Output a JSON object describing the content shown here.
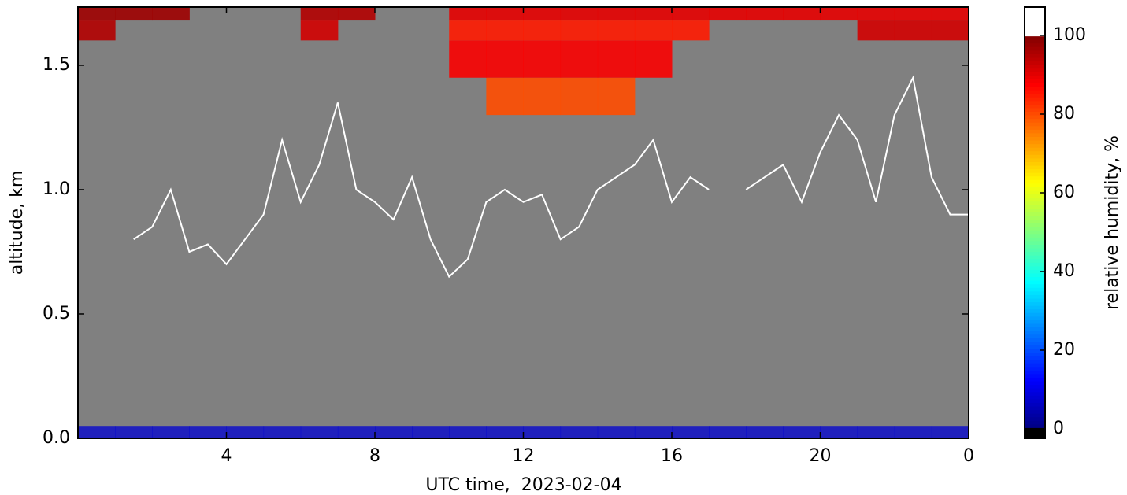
{
  "chart_data": {
    "type": "heatmap",
    "x_label": "UTC time,  2023-02-04",
    "y_label": "altitude, km",
    "xlim": [
      0,
      24
    ],
    "xticks": [
      4,
      8,
      12,
      16,
      20,
      {
        "value": 24,
        "label": "0"
      }
    ],
    "ylim": [
      0,
      1.734
    ],
    "yticks": [
      {
        "value": 0,
        "label": "0.0"
      },
      0.5,
      {
        "value": 1,
        "label": "1.0"
      },
      1.5
    ],
    "heatmap": {
      "x_edges": [
        0,
        1,
        2,
        3,
        4,
        5,
        6,
        7,
        8,
        9,
        10,
        11,
        12,
        13,
        14,
        15,
        16,
        17,
        18,
        19,
        20,
        21,
        22,
        23,
        24
      ],
      "y_edges": [
        0,
        0.05,
        1.3,
        1.45,
        1.6,
        1.68,
        1.734
      ],
      "values": [
        [
          8,
          8,
          8,
          8,
          8,
          8,
          8,
          8,
          8,
          8,
          8,
          8,
          8,
          8,
          8,
          8,
          8,
          8,
          8,
          8,
          8,
          8,
          8,
          8
        ],
        [
          null,
          null,
          null,
          null,
          null,
          null,
          null,
          null,
          null,
          null,
          null,
          null,
          null,
          null,
          null,
          null,
          null,
          null,
          null,
          null,
          null,
          null,
          null,
          null
        ],
        [
          null,
          null,
          null,
          null,
          null,
          null,
          null,
          null,
          null,
          null,
          null,
          80,
          80,
          80,
          80,
          null,
          null,
          null,
          null,
          null,
          null,
          null,
          null,
          null
        ],
        [
          null,
          null,
          null,
          null,
          null,
          null,
          null,
          null,
          null,
          null,
          88,
          88,
          88,
          88,
          88,
          88,
          null,
          null,
          null,
          null,
          null,
          null,
          null,
          null
        ],
        [
          95,
          null,
          null,
          null,
          null,
          null,
          92,
          null,
          null,
          null,
          85,
          85,
          85,
          85,
          85,
          85,
          85,
          null,
          null,
          null,
          null,
          92,
          92,
          92
        ],
        [
          97,
          97,
          97,
          null,
          null,
          null,
          95,
          95,
          null,
          null,
          90,
          90,
          90,
          90,
          90,
          90,
          90,
          90,
          90,
          90,
          90,
          90,
          90,
          90
        ]
      ]
    },
    "contour": {
      "color": "#ffffff",
      "x": [
        1.5,
        2,
        2.5,
        3,
        3.5,
        4,
        4.5,
        5,
        5.5,
        6,
        6.5,
        7,
        7.5,
        8,
        8.5,
        9,
        9.5,
        10,
        10.5,
        11,
        11.5,
        12,
        12.5,
        13,
        13.5,
        14,
        14.5,
        15,
        15.5,
        16,
        16.5,
        17,
        17.5,
        18,
        18.5,
        19,
        19.5,
        20,
        20.5,
        21,
        21.5,
        22,
        22.5,
        23,
        23.5,
        24
      ],
      "y": [
        0.8,
        0.85,
        1.0,
        0.75,
        0.78,
        0.7,
        0.8,
        0.9,
        1.2,
        0.95,
        1.1,
        1.35,
        1.0,
        0.95,
        0.88,
        1.05,
        0.8,
        0.65,
        0.72,
        0.95,
        1.0,
        0.95,
        0.98,
        0.8,
        0.85,
        1.0,
        1.05,
        1.1,
        1.2,
        0.95,
        1.05,
        1.0,
        null,
        1.0,
        1.05,
        1.1,
        0.95,
        1.15,
        1.3,
        1.2,
        0.95,
        1.3,
        1.45,
        1.05,
        0.9,
        0.9
      ]
    },
    "nan_color": "#808080",
    "colormap": "jet",
    "colorbar": {
      "label": "relative humidity, %",
      "clim": [
        -2.4,
        107.2
      ],
      "cticks": [
        0,
        20,
        40,
        60,
        80,
        100
      ],
      "under_color": "#000000",
      "over_color": "#ffffff"
    }
  }
}
